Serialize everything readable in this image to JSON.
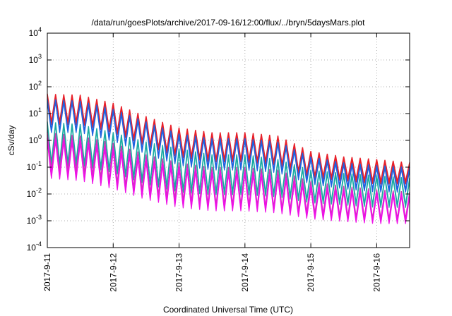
{
  "chart_data": {
    "type": "line",
    "title": "/data/run/goesPlots/archive/2017-09-16/12:00/flux/../bryn/5daysMars.plot",
    "xlabel": "Coordinated Universal Time (UTC)",
    "ylabel": "cSv/day",
    "y_scale": "log",
    "ylim": [
      0.0001,
      10000
    ],
    "y_ticks": [
      {
        "base": "10",
        "exp": "-4",
        "value": 0.0001
      },
      {
        "base": "10",
        "exp": "-3",
        "value": 0.001
      },
      {
        "base": "10",
        "exp": "-2",
        "value": 0.01
      },
      {
        "base": "10",
        "exp": "-1",
        "value": 0.1
      },
      {
        "base": "10",
        "exp": "0",
        "value": 1
      },
      {
        "base": "10",
        "exp": "1",
        "value": 10
      },
      {
        "base": "10",
        "exp": "2",
        "value": 100
      },
      {
        "base": "10",
        "exp": "3",
        "value": 1000
      },
      {
        "base": "10",
        "exp": "4",
        "value": 10000
      }
    ],
    "x_ticks": [
      "2017-9-11",
      "2017-9-12",
      "2017-9-13",
      "2017-9-14",
      "2017-9-15",
      "2017-9-16"
    ],
    "xlim": [
      "2017-09-11T00:00",
      "2017-09-16T12:00"
    ],
    "grid": true,
    "oscillation_period_hours": 3,
    "series": [
      {
        "color": "#e8202a",
        "envelope_x": [
          "2017-09-11T00:00",
          "2017-09-11T12:00",
          "2017-09-12T00:00",
          "2017-09-12T12:00",
          "2017-09-13T00:00",
          "2017-09-13T12:00",
          "2017-09-14T00:00",
          "2017-09-14T12:00",
          "2017-09-15T00:00",
          "2017-09-15T12:00",
          "2017-09-16T00:00",
          "2017-09-16T12:00"
        ],
        "peak": [
          55,
          50,
          25,
          8,
          3,
          2,
          2,
          1.5,
          0.4,
          0.25,
          0.2,
          0.15
        ],
        "trough": [
          5,
          5,
          2.5,
          0.8,
          0.3,
          0.2,
          0.2,
          0.15,
          0.05,
          0.04,
          0.03,
          0.03
        ]
      },
      {
        "color": "#1f62e0",
        "envelope_x": [
          "2017-09-11T00:00",
          "2017-09-11T12:00",
          "2017-09-12T00:00",
          "2017-09-12T12:00",
          "2017-09-13T00:00",
          "2017-09-13T12:00",
          "2017-09-14T00:00",
          "2017-09-14T12:00",
          "2017-09-15T00:00",
          "2017-09-15T12:00",
          "2017-09-16T00:00",
          "2017-09-16T12:00"
        ],
        "peak": [
          35,
          30,
          15,
          5,
          1.8,
          1.2,
          1.2,
          0.9,
          0.25,
          0.15,
          0.12,
          0.1
        ],
        "trough": [
          2.5,
          2.5,
          1.2,
          0.4,
          0.15,
          0.1,
          0.1,
          0.08,
          0.03,
          0.02,
          0.015,
          0.015
        ]
      },
      {
        "color": "#19a9a3",
        "envelope_x": [
          "2017-09-11T00:00",
          "2017-09-11T12:00",
          "2017-09-12T00:00",
          "2017-09-12T12:00",
          "2017-09-13T00:00",
          "2017-09-13T12:00",
          "2017-09-14T00:00",
          "2017-09-14T12:00",
          "2017-09-15T00:00",
          "2017-09-15T12:00",
          "2017-09-16T00:00",
          "2017-09-16T12:00"
        ],
        "peak": [
          5,
          4,
          2,
          0.9,
          0.5,
          0.3,
          0.3,
          0.2,
          0.08,
          0.06,
          0.05,
          0.04
        ],
        "trough": [
          0.15,
          0.15,
          0.08,
          0.03,
          0.015,
          0.012,
          0.012,
          0.01,
          0.006,
          0.005,
          0.004,
          0.004
        ]
      },
      {
        "color": "#c83cb0",
        "envelope_x": [
          "2017-09-11T00:00",
          "2017-09-11T12:00",
          "2017-09-12T00:00",
          "2017-09-12T12:00",
          "2017-09-13T00:00",
          "2017-09-13T12:00",
          "2017-09-14T00:00",
          "2017-09-14T12:00",
          "2017-09-15T00:00",
          "2017-09-15T12:00",
          "2017-09-16T00:00",
          "2017-09-16T12:00"
        ],
        "peak": [
          2,
          1.5,
          0.8,
          0.3,
          0.15,
          0.1,
          0.1,
          0.08,
          0.03,
          0.02,
          0.015,
          0.012
        ],
        "trough": [
          0.08,
          0.07,
          0.03,
          0.012,
          0.006,
          0.004,
          0.004,
          0.003,
          0.002,
          0.0015,
          0.0012,
          0.0012
        ]
      },
      {
        "color": "#ee10e6",
        "envelope_x": [
          "2017-09-11T00:00",
          "2017-09-11T12:00",
          "2017-09-12T00:00",
          "2017-09-12T12:00",
          "2017-09-13T00:00",
          "2017-09-13T12:00",
          "2017-09-14T00:00",
          "2017-09-14T12:00",
          "2017-09-15T00:00",
          "2017-09-15T12:00",
          "2017-09-16T00:00",
          "2017-09-16T12:00"
        ],
        "peak": [
          1.2,
          1,
          0.5,
          0.2,
          0.1,
          0.07,
          0.07,
          0.05,
          0.02,
          0.015,
          0.012,
          0.01
        ],
        "trough": [
          0.05,
          0.04,
          0.02,
          0.008,
          0.004,
          0.003,
          0.003,
          0.0025,
          0.0015,
          0.0012,
          0.001,
          0.001
        ]
      }
    ]
  }
}
